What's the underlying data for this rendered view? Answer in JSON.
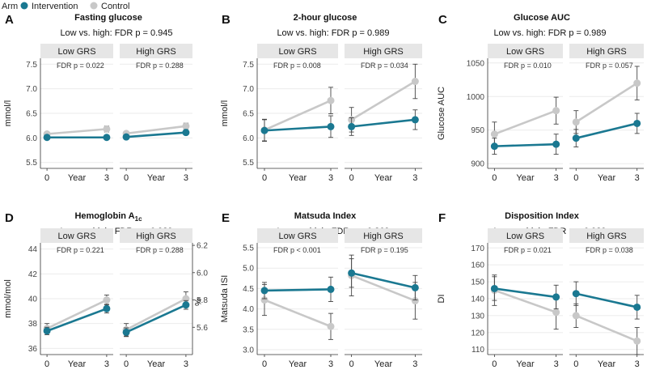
{
  "legend": {
    "title": "Arm",
    "items": [
      {
        "label": "Intervention",
        "color": "#1a7891"
      },
      {
        "label": "Control",
        "color": "#c8c8c8"
      }
    ]
  },
  "chart_data": [
    {
      "letter": "A",
      "type": "line",
      "title": "Fasting glucose",
      "title_sub": "",
      "subtitle": "Low vs. high: FDR p = 0.945",
      "ylabel": "mmol/l",
      "yticks": [
        5.5,
        6.0,
        6.5,
        7.0,
        7.5
      ],
      "ylim": [
        5.38,
        7.62
      ],
      "xlabel": "Year",
      "x": [
        0,
        3
      ],
      "facets": [
        {
          "label": "Low GRS",
          "fdr": "FDR p = 0.022",
          "series": [
            {
              "name": "Intervention",
              "values": [
                6.01,
                6.01
              ],
              "err": [
                0.03,
                0.04
              ]
            },
            {
              "name": "Control",
              "values": [
                6.08,
                6.18
              ],
              "err": [
                0.04,
                0.06
              ]
            }
          ]
        },
        {
          "label": "High GRS",
          "fdr": "FDR p = 0.288",
          "series": [
            {
              "name": "Intervention",
              "values": [
                6.02,
                6.11
              ],
              "err": [
                0.03,
                0.04
              ]
            },
            {
              "name": "Control",
              "values": [
                6.09,
                6.24
              ],
              "err": [
                0.04,
                0.06
              ]
            }
          ]
        }
      ]
    },
    {
      "letter": "B",
      "type": "line",
      "title": "2-hour glucose",
      "title_sub": "",
      "subtitle": "Low vs. high: FDR p = 0.989",
      "ylabel": "mmol/l",
      "yticks": [
        5.5,
        6.0,
        6.5,
        7.0,
        7.5
      ],
      "ylim": [
        5.38,
        7.62
      ],
      "xlabel": "Year",
      "x": [
        0,
        3
      ],
      "facets": [
        {
          "label": "Low GRS",
          "fdr": "FDR p = 0.008",
          "series": [
            {
              "name": "Intervention",
              "values": [
                6.15,
                6.23
              ],
              "err": [
                0.22,
                0.22
              ]
            },
            {
              "name": "Control",
              "values": [
                6.16,
                6.76
              ],
              "err": [
                0.22,
                0.27
              ]
            }
          ]
        },
        {
          "label": "High GRS",
          "fdr": "FDR p = 0.034",
          "series": [
            {
              "name": "Intervention",
              "values": [
                6.23,
                6.37
              ],
              "err": [
                0.18,
                0.2
              ]
            },
            {
              "name": "Control",
              "values": [
                6.37,
                7.15
              ],
              "err": [
                0.25,
                0.35
              ]
            }
          ]
        }
      ]
    },
    {
      "letter": "C",
      "type": "line",
      "title": "Glucose AUC",
      "title_sub": "",
      "subtitle": "Low vs. high: FDR p = 0.989",
      "ylabel": "Glucose AUC",
      "yticks": [
        900,
        950,
        1000,
        1050
      ],
      "ylim": [
        893,
        1057
      ],
      "xlabel": "Year",
      "x": [
        0,
        3
      ],
      "facets": [
        {
          "label": "Low GRS",
          "fdr": "FDR p = 0.010",
          "series": [
            {
              "name": "Intervention",
              "values": [
                926,
                929
              ],
              "err": [
                12,
                15
              ]
            },
            {
              "name": "Control",
              "values": [
                944,
                979
              ],
              "err": [
                18,
                20
              ]
            }
          ]
        },
        {
          "label": "High GRS",
          "fdr": "FDR p = 0.057",
          "series": [
            {
              "name": "Intervention",
              "values": [
                938,
                960
              ],
              "err": [
                13,
                15
              ]
            },
            {
              "name": "Control",
              "values": [
                962,
                1020
              ],
              "err": [
                17,
                25
              ]
            }
          ]
        }
      ]
    },
    {
      "letter": "D",
      "type": "line",
      "title": "Hemoglobin A",
      "title_sub": "1c",
      "subtitle": "Low vs. high: FDR p = 0.989",
      "ylabel": "mmol/mol",
      "yticks": [
        36,
        38,
        40,
        42,
        44
      ],
      "ylim": [
        35.5,
        44.5
      ],
      "y2label": "%",
      "y2ticks": [
        "5.6",
        "5.8",
        "6.0",
        "6.2"
      ],
      "y2values": [
        37.7,
        39.9,
        42.1,
        44.3
      ],
      "xlabel": "Year",
      "x": [
        0,
        3
      ],
      "facets": [
        {
          "label": "Low GRS",
          "fdr": "FDR p = 0.221",
          "series": [
            {
              "name": "Intervention",
              "values": [
                37.4,
                39.2
              ],
              "err": [
                0.3,
                0.35
              ]
            },
            {
              "name": "Control",
              "values": [
                37.6,
                39.9
              ],
              "err": [
                0.4,
                0.4
              ]
            }
          ]
        },
        {
          "label": "High GRS",
          "fdr": "FDR p = 0.288",
          "series": [
            {
              "name": "Intervention",
              "values": [
                37.3,
                39.5
              ],
              "err": [
                0.35,
                0.35
              ]
            },
            {
              "name": "Control",
              "values": [
                37.5,
                40.0
              ],
              "err": [
                0.5,
                0.55
              ]
            }
          ]
        }
      ]
    },
    {
      "letter": "E",
      "type": "line",
      "title": "Matsuda Index",
      "title_sub": "",
      "subtitle": "Low vs. high: FDR p = 0.369",
      "ylabel": "Matsuda ISI",
      "yticks": [
        3.0,
        3.5,
        4.0,
        4.5,
        5.0,
        5.5
      ],
      "ylim": [
        2.88,
        5.62
      ],
      "xlabel": "Year",
      "x": [
        0,
        3
      ],
      "facets": [
        {
          "label": "Low GRS",
          "fdr": "FDR p < 0.001",
          "series": [
            {
              "name": "Intervention",
              "values": [
                4.45,
                4.48
              ],
              "err": [
                0.2,
                0.3
              ]
            },
            {
              "name": "Control",
              "values": [
                4.22,
                3.57
              ],
              "err": [
                0.38,
                0.32
              ]
            }
          ]
        },
        {
          "label": "High GRS",
          "fdr": "FDR p = 0.195",
          "series": [
            {
              "name": "Intervention",
              "values": [
                4.88,
                4.52
              ],
              "err": [
                0.35,
                0.3
              ]
            },
            {
              "name": "Control",
              "values": [
                4.82,
                4.2
              ],
              "err": [
                0.5,
                0.45
              ]
            }
          ]
        }
      ]
    },
    {
      "letter": "F",
      "type": "line",
      "title": "Disposition Index",
      "title_sub": "",
      "subtitle": "Low vs. high: FDR p = 0.989",
      "ylabel": "DI",
      "yticks": [
        110,
        120,
        130,
        140,
        150,
        160,
        170
      ],
      "ylim": [
        107,
        173
      ],
      "xlabel": "Year",
      "x": [
        0,
        3
      ],
      "facets": [
        {
          "label": "Low GRS",
          "fdr": "FDR p = 0.021",
          "series": [
            {
              "name": "Intervention",
              "values": [
                146,
                141
              ],
              "err": [
                7,
                7
              ]
            },
            {
              "name": "Control",
              "values": [
                145,
                132
              ],
              "err": [
                9,
                10
              ]
            }
          ]
        },
        {
          "label": "High GRS",
          "fdr": "FDR p = 0.038",
          "series": [
            {
              "name": "Intervention",
              "values": [
                143,
                135
              ],
              "err": [
                7,
                7
              ]
            },
            {
              "name": "Control",
              "values": [
                130,
                115
              ],
              "err": [
                7,
                8
              ]
            }
          ]
        }
      ]
    }
  ]
}
